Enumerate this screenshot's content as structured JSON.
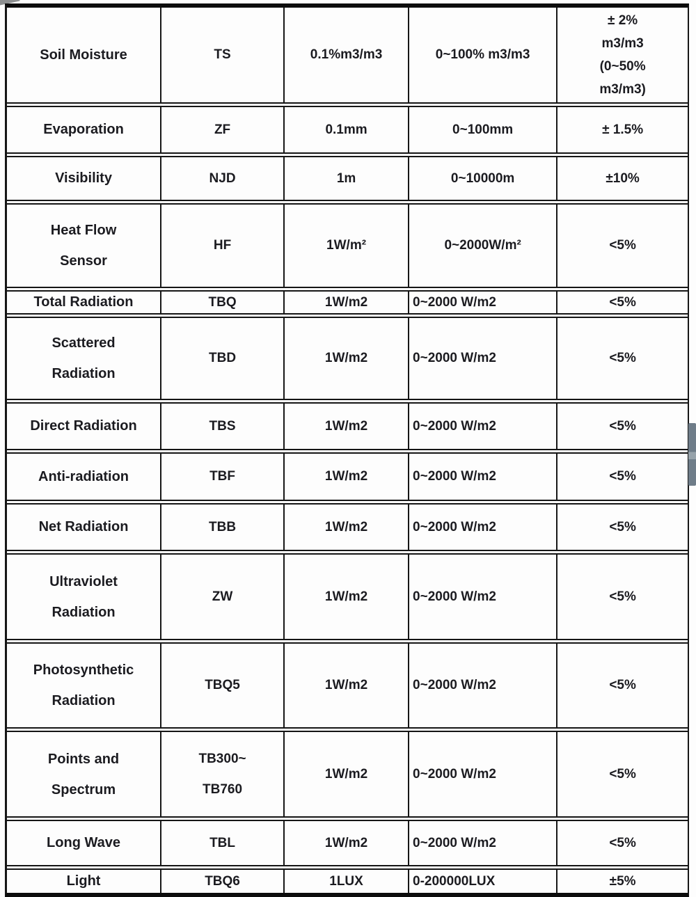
{
  "colors": {
    "border": "#151515",
    "text": "#1b1b20",
    "scrollbar_thumb": "#6f7d89",
    "background": "#fdfdfd"
  },
  "scrollbar": {
    "thumb_visible": true
  },
  "table": {
    "rows": [
      {
        "name": "Soil Moisture",
        "model": "TS",
        "resolution": "0.1%m3/m3",
        "range": "0~100% m3/m3",
        "accuracy": "± 2%\nm3/m3\n(0~50%\nm3/m3)"
      },
      {
        "name": "Evaporation",
        "model": "ZF",
        "resolution": "0.1mm",
        "range": "0~100mm",
        "accuracy": "± 1.5%"
      },
      {
        "name": "Visibility",
        "model": "NJD",
        "resolution": "1m",
        "range": "0~10000m",
        "accuracy": "±10%"
      },
      {
        "name": "Heat Flow\nSensor",
        "model": "HF",
        "resolution": "1W/m²",
        "range": "0~2000W/m²",
        "accuracy": "<5%"
      },
      {
        "name": "Total Radiation",
        "model": "TBQ",
        "resolution": "1W/m2",
        "range": "0~2000 W/m2",
        "accuracy": "<5%"
      },
      {
        "name": "Scattered\nRadiation",
        "model": "TBD",
        "resolution": "1W/m2",
        "range": "0~2000 W/m2",
        "accuracy": "<5%"
      },
      {
        "name": "Direct Radiation",
        "model": "TBS",
        "resolution": "1W/m2",
        "range": "0~2000 W/m2",
        "accuracy": "<5%"
      },
      {
        "name": "Anti-radiation",
        "model": "TBF",
        "resolution": "1W/m2",
        "range": "0~2000 W/m2",
        "accuracy": "<5%"
      },
      {
        "name": "Net Radiation",
        "model": "TBB",
        "resolution": "1W/m2",
        "range": "0~2000 W/m2",
        "accuracy": "<5%"
      },
      {
        "name": "Ultraviolet\nRadiation",
        "model": "ZW",
        "resolution": "1W/m2",
        "range": "0~2000 W/m2",
        "accuracy": "<5%"
      },
      {
        "name": "Photosynthetic\nRadiation",
        "model": "TBQ5",
        "resolution": "1W/m2",
        "range": "0~2000 W/m2",
        "accuracy": "<5%"
      },
      {
        "name": "Points and\nSpectrum",
        "model": "TB300~\nTB760",
        "resolution": "1W/m2",
        "range": "0~2000 W/m2",
        "accuracy": "<5%"
      },
      {
        "name": "Long Wave",
        "model": "TBL",
        "resolution": "1W/m2",
        "range": "0~2000 W/m2",
        "accuracy": "<5%"
      },
      {
        "name": "Light",
        "model": "TBQ6",
        "resolution": "1LUX",
        "range": "0-200000LUX",
        "accuracy": "±5%"
      }
    ]
  }
}
